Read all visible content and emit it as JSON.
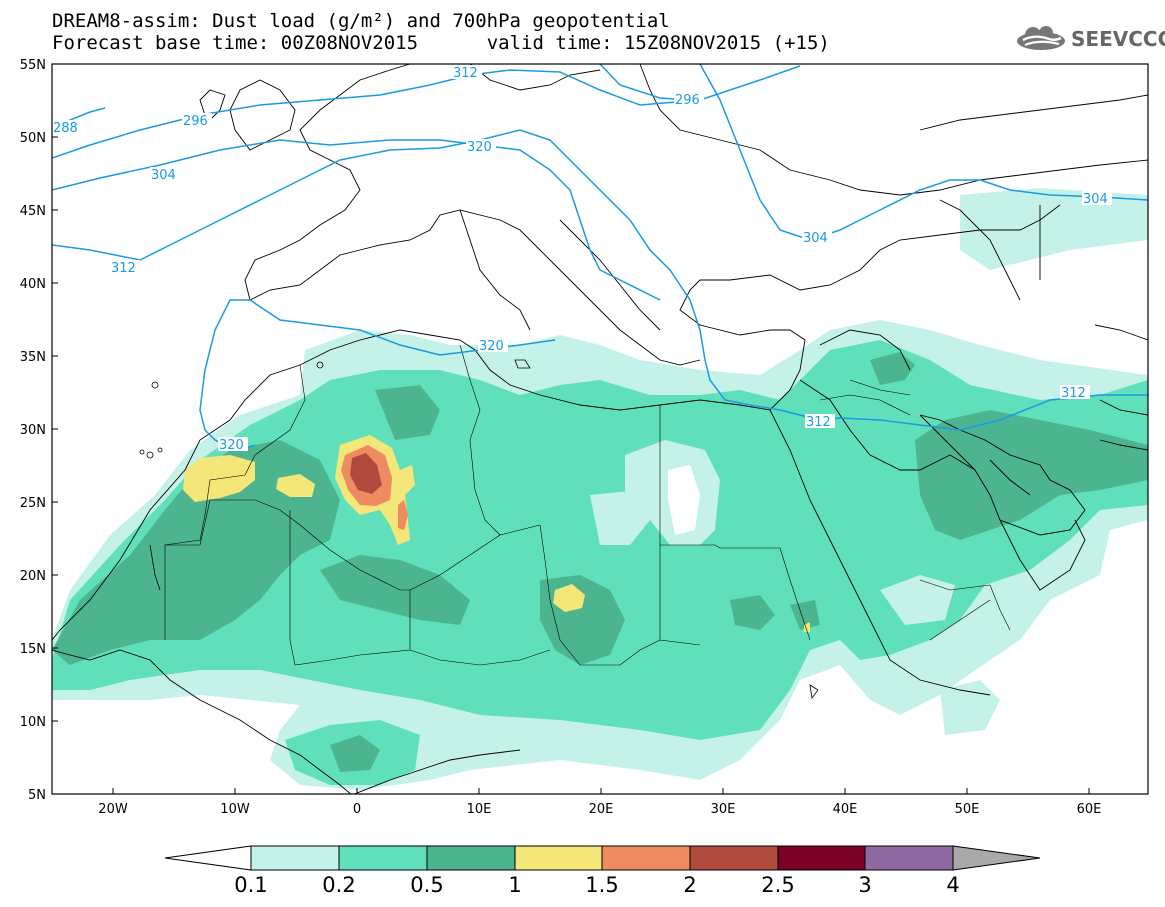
{
  "title": {
    "line1": "DREAM8-assim: Dust load (g/m²) and 700hPa geopotential",
    "line2_left": "Forecast base time: 00Z08NOV2015",
    "line2_right": "valid time: 15Z08NOV2015 (+15)"
  },
  "brand": {
    "name": "SEEVCCC",
    "icon": "cloud-icon"
  },
  "axes": {
    "lat_labels": [
      "55N",
      "50N",
      "45N",
      "40N",
      "35N",
      "30N",
      "25N",
      "20N",
      "15N",
      "10N",
      "5N"
    ],
    "lon_labels": [
      "20W",
      "10W",
      "0",
      "10E",
      "20E",
      "30E",
      "40E",
      "50E",
      "60E"
    ],
    "lat_range": [
      5,
      55
    ],
    "lon_range": [
      -25,
      65
    ]
  },
  "contours": {
    "color": "#1a9ae6",
    "labels": [
      "288",
      "296",
      "304",
      "312",
      "320",
      "320",
      "320",
      "296",
      "304",
      "304",
      "312",
      "312",
      "312"
    ]
  },
  "legend": {
    "ticks": [
      "0.1",
      "0.2",
      "0.5",
      "1",
      "1.5",
      "2",
      "2.5",
      "3",
      "4"
    ],
    "colors": [
      "#c5f2e8",
      "#5fe0bb",
      "#4cb58f",
      "#f4e679",
      "#ee8b60",
      "#b04a3c",
      "#7b0028",
      "#8f6aa0"
    ],
    "left_arrow_color": "#ffffff",
    "right_arrow_color": "#a9a9a9"
  }
}
